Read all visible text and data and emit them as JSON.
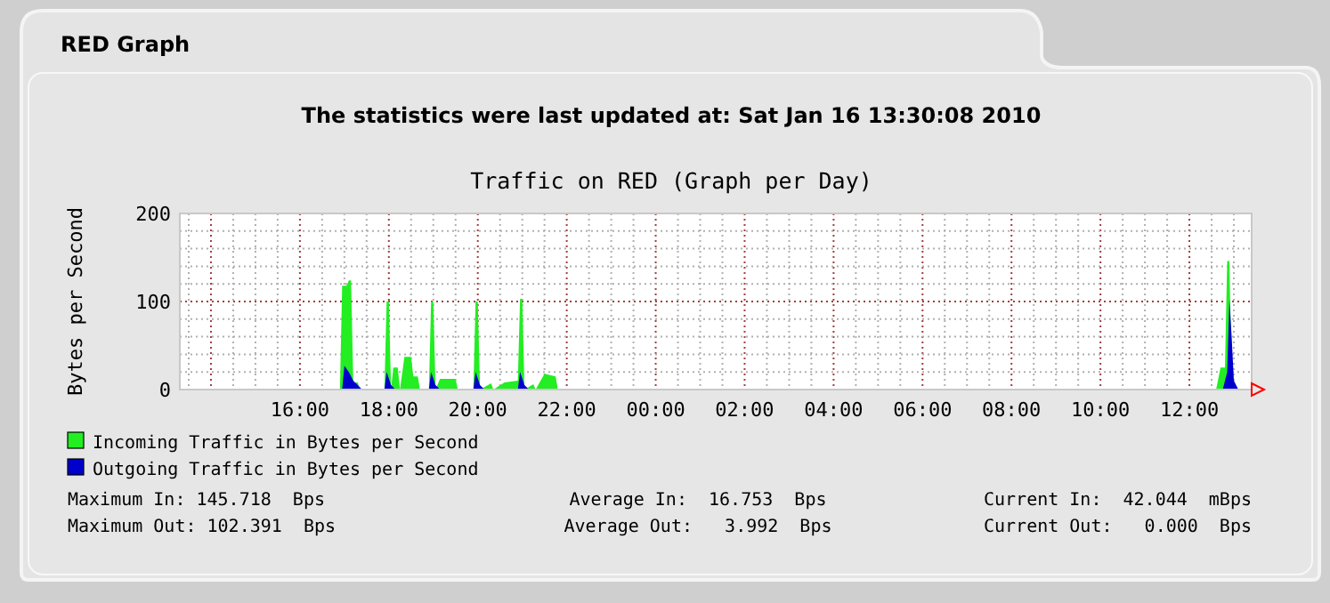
{
  "chart_data": {
    "type": "area",
    "title": "Traffic on RED (Graph per Day)",
    "subtitle": "The statistics were last updated at: Sat Jan 16 13:30:08 2010",
    "ylabel": "Bytes per Second",
    "annotations": [
      "RED Graph",
      "Maximum In: 145.718  Bps",
      "Maximum Out: 102.391  Bps",
      "Average In:  16.753  Bps",
      "Average Out:   3.992  Bps",
      "Current In:  42.044  mBps",
      "Current Out:   0.000  Bps"
    ],
    "xlim": [
      "2010-01-15T13:18",
      "2010-01-16T13:24"
    ],
    "ylim": [
      0,
      200
    ],
    "xticks": [
      {
        "value": "2010-01-15T13:30",
        "label": null
      },
      {
        "value": "2010-01-15T14:00",
        "label": null
      },
      {
        "value": "2010-01-15T14:30",
        "label": null
      },
      {
        "value": "2010-01-15T15:00",
        "label": null
      },
      {
        "value": "2010-01-15T15:30",
        "label": null
      },
      {
        "value": "2010-01-15T16:00",
        "label": "16:00"
      },
      {
        "value": "2010-01-15T16:30",
        "label": null
      },
      {
        "value": "2010-01-15T17:00",
        "label": null
      },
      {
        "value": "2010-01-15T17:30",
        "label": null
      },
      {
        "value": "2010-01-15T18:00",
        "label": "18:00"
      },
      {
        "value": "2010-01-15T18:30",
        "label": null
      },
      {
        "value": "2010-01-15T19:00",
        "label": null
      },
      {
        "value": "2010-01-15T19:30",
        "label": null
      },
      {
        "value": "2010-01-15T20:00",
        "label": "20:00"
      },
      {
        "value": "2010-01-15T20:30",
        "label": null
      },
      {
        "value": "2010-01-15T21:00",
        "label": null
      },
      {
        "value": "2010-01-15T21:30",
        "label": null
      },
      {
        "value": "2010-01-15T22:00",
        "label": "22:00"
      },
      {
        "value": "2010-01-15T22:30",
        "label": null
      },
      {
        "value": "2010-01-15T23:00",
        "label": null
      },
      {
        "value": "2010-01-15T23:30",
        "label": null
      },
      {
        "value": "2010-01-16T00:00",
        "label": "00:00"
      },
      {
        "value": "2010-01-16T00:30",
        "label": null
      },
      {
        "value": "2010-01-16T01:00",
        "label": null
      },
      {
        "value": "2010-01-16T01:30",
        "label": null
      },
      {
        "value": "2010-01-16T02:00",
        "label": "02:00"
      },
      {
        "value": "2010-01-16T02:30",
        "label": null
      },
      {
        "value": "2010-01-16T03:00",
        "label": null
      },
      {
        "value": "2010-01-16T03:30",
        "label": null
      },
      {
        "value": "2010-01-16T04:00",
        "label": "04:00"
      },
      {
        "value": "2010-01-16T04:30",
        "label": null
      },
      {
        "value": "2010-01-16T05:00",
        "label": null
      },
      {
        "value": "2010-01-16T05:30",
        "label": null
      },
      {
        "value": "2010-01-16T06:00",
        "label": "06:00"
      },
      {
        "value": "2010-01-16T06:30",
        "label": null
      },
      {
        "value": "2010-01-16T07:00",
        "label": null
      },
      {
        "value": "2010-01-16T07:30",
        "label": null
      },
      {
        "value": "2010-01-16T08:00",
        "label": "08:00"
      },
      {
        "value": "2010-01-16T08:30",
        "label": null
      },
      {
        "value": "2010-01-16T09:00",
        "label": null
      },
      {
        "value": "2010-01-16T09:30",
        "label": null
      },
      {
        "value": "2010-01-16T10:00",
        "label": "10:00"
      },
      {
        "value": "2010-01-16T10:30",
        "label": null
      },
      {
        "value": "2010-01-16T11:00",
        "label": null
      },
      {
        "value": "2010-01-16T11:30",
        "label": null
      },
      {
        "value": "2010-01-16T12:00",
        "label": "12:00"
      },
      {
        "value": "2010-01-16T12:30",
        "label": null
      },
      {
        "value": "2010-01-16T13:00",
        "label": null
      }
    ],
    "yticks": [
      0,
      {
        "value": 20,
        "label": null
      },
      {
        "value": 40,
        "label": null
      },
      {
        "value": 60,
        "label": null
      },
      {
        "value": 80,
        "label": null
      },
      100,
      {
        "value": 120,
        "label": null
      },
      {
        "value": 140,
        "label": null
      },
      {
        "value": 160,
        "label": null
      },
      {
        "value": 180,
        "label": null
      },
      200
    ],
    "grid": true,
    "legend": "bottom left",
    "series": [
      {
        "name": "Incoming Traffic in Bytes per Second",
        "color": "#22ee22",
        "x": [
          "2010-01-15T13:18",
          "2010-01-15T16:54",
          "2010-01-15T16:57",
          "2010-01-15T17:03",
          "2010-01-15T17:06",
          "2010-01-15T17:09",
          "2010-01-15T17:12",
          "2010-01-15T17:18",
          "2010-01-15T17:21",
          "2010-01-15T17:54",
          "2010-01-15T17:57",
          "2010-01-15T18:00",
          "2010-01-15T18:03",
          "2010-01-15T18:06",
          "2010-01-15T18:12",
          "2010-01-15T18:15",
          "2010-01-15T18:21",
          "2010-01-15T18:30",
          "2010-01-15T18:33",
          "2010-01-15T18:39",
          "2010-01-15T18:42",
          "2010-01-15T18:54",
          "2010-01-15T18:57",
          "2010-01-15T19:00",
          "2010-01-15T19:03",
          "2010-01-15T19:09",
          "2010-01-15T19:30",
          "2010-01-15T19:33",
          "2010-01-15T19:54",
          "2010-01-15T19:57",
          "2010-01-15T20:00",
          "2010-01-15T20:03",
          "2010-01-15T20:18",
          "2010-01-15T20:21",
          "2010-01-15T20:36",
          "2010-01-15T20:54",
          "2010-01-15T20:57",
          "2010-01-15T21:00",
          "2010-01-15T21:03",
          "2010-01-15T21:15",
          "2010-01-15T21:18",
          "2010-01-15T21:30",
          "2010-01-15T21:45",
          "2010-01-15T21:48",
          "2010-01-16T12:36",
          "2010-01-16T12:42",
          "2010-01-16T12:48",
          "2010-01-16T12:51",
          "2010-01-16T12:54",
          "2010-01-16T12:57",
          "2010-01-16T13:00",
          "2010-01-16T13:06"
        ],
        "values": [
          0,
          0,
          118,
          118,
          124,
          124,
          8,
          8,
          0,
          0,
          100,
          100,
          0,
          25,
          25,
          0,
          37,
          37,
          15,
          15,
          0,
          0,
          100,
          100,
          0,
          12,
          12,
          0,
          0,
          100,
          100,
          0,
          7,
          0,
          8,
          10,
          103,
          103,
          0,
          6,
          0,
          18,
          15,
          0,
          0,
          25,
          25,
          146,
          146,
          10,
          0,
          0
        ]
      },
      {
        "name": "Outgoing Traffic in Bytes per Second",
        "color": "#0000cc",
        "x": [
          "2010-01-15T13:18",
          "2010-01-15T16:57",
          "2010-01-15T17:00",
          "2010-01-15T17:06",
          "2010-01-15T17:12",
          "2010-01-15T17:18",
          "2010-01-15T17:24",
          "2010-01-15T17:54",
          "2010-01-15T17:57",
          "2010-01-15T18:03",
          "2010-01-15T18:09",
          "2010-01-15T18:54",
          "2010-01-15T18:57",
          "2010-01-15T19:03",
          "2010-01-15T19:09",
          "2010-01-15T19:54",
          "2010-01-15T19:57",
          "2010-01-15T20:03",
          "2010-01-15T20:09",
          "2010-01-15T20:54",
          "2010-01-15T20:57",
          "2010-01-15T21:03",
          "2010-01-15T21:09",
          "2010-01-16T12:45",
          "2010-01-16T12:51",
          "2010-01-16T12:54",
          "2010-01-16T12:57",
          "2010-01-16T13:00",
          "2010-01-16T13:06"
        ],
        "values": [
          0,
          0,
          27,
          20,
          10,
          5,
          0,
          0,
          20,
          5,
          0,
          0,
          20,
          5,
          0,
          0,
          20,
          5,
          0,
          0,
          20,
          5,
          0,
          0,
          20,
          102,
          60,
          10,
          0
        ]
      }
    ]
  }
}
